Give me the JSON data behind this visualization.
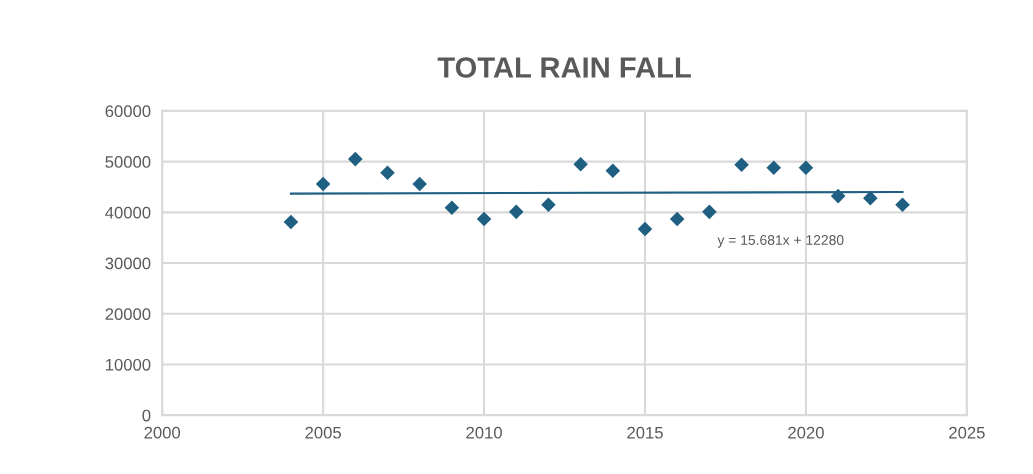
{
  "chart_data": {
    "type": "scatter",
    "title": "TOTAL RAIN FALL",
    "grid": true,
    "legend": false,
    "xlim": [
      2000,
      2025
    ],
    "xticks": [
      2000,
      2005,
      2010,
      2015,
      2020,
      2025
    ],
    "ylim": [
      0,
      60000
    ],
    "yticks": [
      0,
      10000,
      20000,
      30000,
      40000,
      50000,
      60000
    ],
    "x": [
      2004,
      2005,
      2006,
      2007,
      2008,
      2009,
      2010,
      2011,
      2012,
      2013,
      2014,
      2015,
      2016,
      2017,
      2018,
      2019,
      2020,
      2021,
      2022,
      2023
    ],
    "series": [
      {
        "color": "#1f5f82",
        "marker": "diamond",
        "values": [
          38100,
          45600,
          50500,
          47800,
          45600,
          40900,
          38700,
          40100,
          41500,
          49500,
          48200,
          36700,
          38700,
          40100,
          49400,
          48800,
          48800,
          43200,
          42800,
          41500
        ]
      },
      {
        "type": "line",
        "color": "#1f5f82",
        "x": [
          2004,
          2023
        ],
        "marker": "none",
        "values": [
          43700,
          44000
        ]
      }
    ],
    "annotations": [
      "y = 15.681x + 12280"
    ]
  }
}
